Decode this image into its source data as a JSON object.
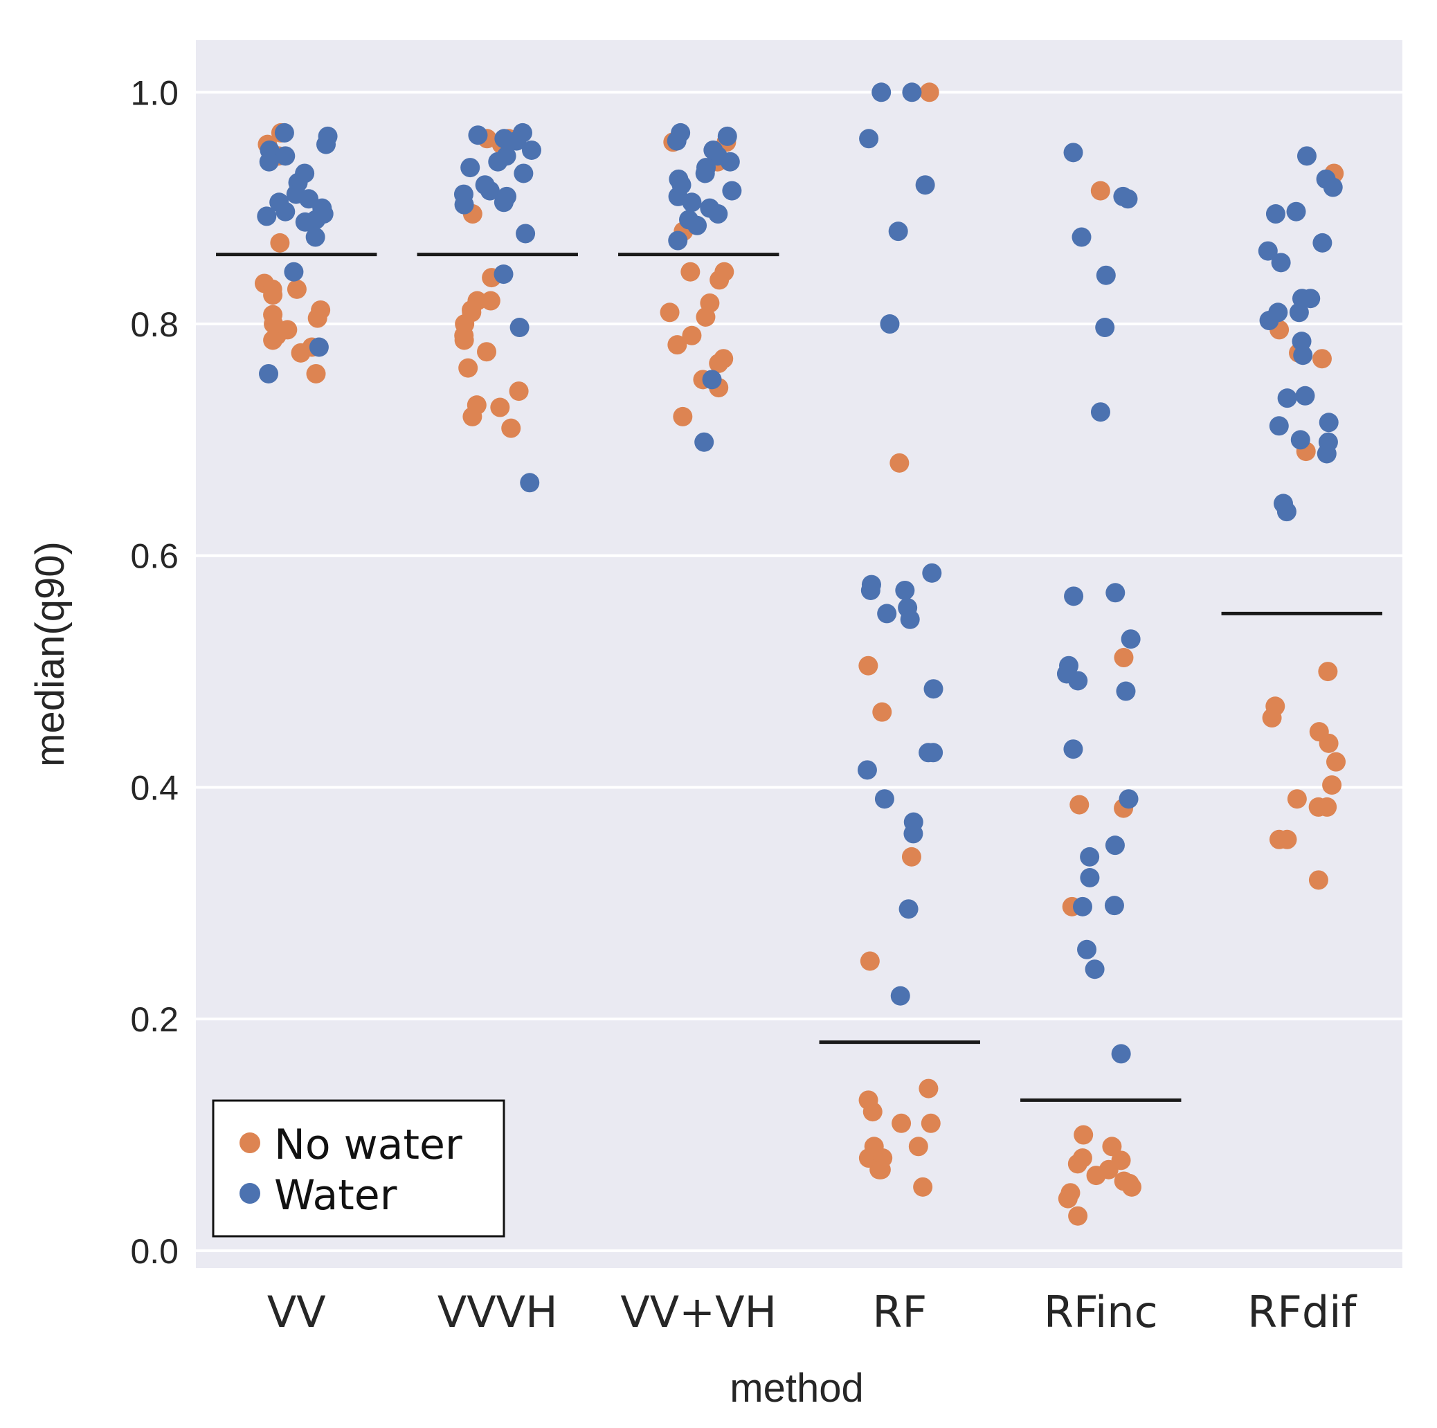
{
  "chart_data": {
    "type": "scatter",
    "subtype": "strip plot with threshold lines",
    "xlabel": "method",
    "ylabel": "median(q90)",
    "ylim": [
      -0.015,
      1.045
    ],
    "yticks": [
      "0.0",
      "0.2",
      "0.4",
      "0.6",
      "0.8",
      "1.0"
    ],
    "grid": true,
    "categories": [
      "VV",
      "VVVH",
      "VV+VH",
      "RF",
      "RFinc",
      "RFdif"
    ],
    "thresholds": [
      0.86,
      0.86,
      0.86,
      0.18,
      0.13,
      0.55
    ],
    "legend": {
      "position": "bottom-left",
      "entries": [
        {
          "label": "No water",
          "color": "#dd8452"
        },
        {
          "label": "Water",
          "color": "#4c72b0"
        }
      ]
    },
    "series": [
      {
        "name": "No water",
        "color": "#dd8452",
        "points": [
          {
            "category": "VV",
            "values": [
              0.965,
              0.955,
              0.945,
              0.87,
              0.835,
              0.83,
              0.825,
              0.83,
              0.812,
              0.808,
              0.805,
              0.8,
              0.795,
              0.79,
              0.786,
              0.78,
              0.775,
              0.757
            ]
          },
          {
            "category": "VVVH",
            "values": [
              0.96,
              0.96,
              0.955,
              0.895,
              0.84,
              0.82,
              0.82,
              0.81,
              0.812,
              0.8,
              0.79,
              0.786,
              0.776,
              0.762,
              0.742,
              0.73,
              0.728,
              0.72,
              0.71
            ]
          },
          {
            "category": "VV+VH",
            "values": [
              0.957,
              0.957,
              0.94,
              0.88,
              0.845,
              0.845,
              0.838,
              0.818,
              0.81,
              0.806,
              0.79,
              0.782,
              0.77,
              0.766,
              0.752,
              0.745,
              0.72
            ]
          },
          {
            "category": "RF",
            "values": [
              1.0,
              0.68,
              0.505,
              0.465,
              0.34,
              0.25,
              0.14,
              0.13,
              0.12,
              0.11,
              0.11,
              0.09,
              0.09,
              0.08,
              0.08,
              0.07,
              0.07,
              0.055
            ]
          },
          {
            "category": "RFinc",
            "values": [
              0.915,
              0.512,
              0.385,
              0.382,
              0.297,
              0.1,
              0.09,
              0.08,
              0.078,
              0.075,
              0.07,
              0.065,
              0.06,
              0.058,
              0.055,
              0.05,
              0.045,
              0.03
            ]
          },
          {
            "category": "RFdif",
            "values": [
              0.93,
              0.795,
              0.775,
              0.77,
              0.69,
              0.5,
              0.47,
              0.46,
              0.448,
              0.438,
              0.422,
              0.402,
              0.39,
              0.383,
              0.383,
              0.355,
              0.355,
              0.32
            ]
          }
        ]
      },
      {
        "name": "Water",
        "color": "#4c72b0",
        "points": [
          {
            "category": "VV",
            "values": [
              0.965,
              0.962,
              0.955,
              0.95,
              0.945,
              0.94,
              0.93,
              0.922,
              0.912,
              0.908,
              0.905,
              0.9,
              0.897,
              0.895,
              0.893,
              0.89,
              0.888,
              0.875,
              0.845,
              0.78,
              0.757
            ]
          },
          {
            "category": "VVVH",
            "values": [
              0.965,
              0.963,
              0.96,
              0.958,
              0.95,
              0.945,
              0.94,
              0.935,
              0.93,
              0.92,
              0.915,
              0.912,
              0.91,
              0.905,
              0.903,
              0.878,
              0.843,
              0.797,
              0.663
            ]
          },
          {
            "category": "VV+VH",
            "values": [
              0.965,
              0.962,
              0.958,
              0.95,
              0.945,
              0.94,
              0.935,
              0.93,
              0.925,
              0.92,
              0.915,
              0.91,
              0.905,
              0.9,
              0.895,
              0.89,
              0.885,
              0.872,
              0.752,
              0.698
            ]
          },
          {
            "category": "RF",
            "values": [
              1.0,
              1.0,
              0.96,
              0.92,
              0.88,
              0.8,
              0.585,
              0.575,
              0.57,
              0.57,
              0.555,
              0.55,
              0.545,
              0.485,
              0.43,
              0.43,
              0.415,
              0.39,
              0.37,
              0.36,
              0.295,
              0.22
            ]
          },
          {
            "category": "RFinc",
            "values": [
              0.948,
              0.91,
              0.908,
              0.875,
              0.842,
              0.797,
              0.724,
              0.568,
              0.565,
              0.528,
              0.505,
              0.498,
              0.492,
              0.483,
              0.433,
              0.39,
              0.35,
              0.34,
              0.322,
              0.298,
              0.297,
              0.26,
              0.243,
              0.17
            ]
          },
          {
            "category": "RFdif",
            "values": [
              0.945,
              0.925,
              0.918,
              0.897,
              0.895,
              0.87,
              0.863,
              0.853,
              0.822,
              0.822,
              0.81,
              0.81,
              0.803,
              0.785,
              0.773,
              0.738,
              0.736,
              0.715,
              0.712,
              0.7,
              0.698,
              0.688,
              0.645,
              0.638
            ]
          }
        ]
      }
    ]
  }
}
